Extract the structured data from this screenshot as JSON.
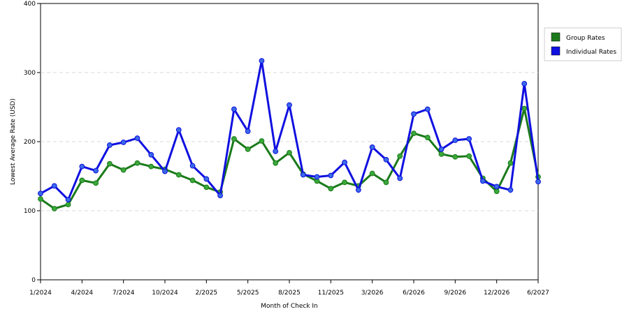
{
  "chart_data": {
    "type": "line",
    "title": "",
    "xlabel": "Month of Check In",
    "ylabel": "Lowest Average Rate (USD)",
    "ylim": [
      0,
      400
    ],
    "yticks": [
      0,
      100,
      200,
      300,
      400
    ],
    "grid": true,
    "legend_position": "right",
    "x_tick_labels": [
      "1/2024",
      "4/2024",
      "7/2024",
      "10/2024",
      "2/2025",
      "5/2025",
      "8/2025",
      "11/2025",
      "3/2026",
      "6/2026",
      "9/2026",
      "12/2026",
      "6/2027"
    ],
    "x_tick_indices": [
      0,
      3,
      6,
      9,
      12,
      15,
      18,
      21,
      24,
      27,
      30,
      33,
      36
    ],
    "series": [
      {
        "name": "Group Rates",
        "color": "#1a7a1a",
        "marker_color": "#3aa83a",
        "values": [
          117,
          103,
          109,
          144,
          140,
          168,
          159,
          169,
          164,
          160,
          152,
          144,
          134,
          127,
          204,
          189,
          201,
          169,
          184,
          153,
          143,
          132,
          141,
          136,
          154,
          141,
          179,
          212,
          206,
          182,
          178,
          179,
          147,
          128,
          169,
          248,
          149
        ]
      },
      {
        "name": "Individual Rates",
        "color": "#1010e0",
        "marker_color": "#3a6ae8",
        "values": [
          125,
          136,
          116,
          164,
          158,
          195,
          199,
          205,
          181,
          157,
          217,
          165,
          146,
          122,
          247,
          215,
          317,
          186,
          253,
          152,
          149,
          151,
          170,
          130,
          192,
          174,
          147,
          240,
          247,
          189,
          202,
          204,
          143,
          135,
          130,
          284,
          142
        ]
      }
    ]
  }
}
